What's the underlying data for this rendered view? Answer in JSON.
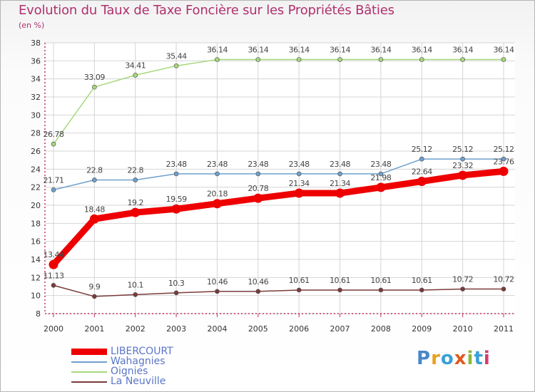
{
  "header": {
    "title": "Evolution du Taux de Taxe Foncière sur les Propriétés Bâties",
    "unit": "(en %)"
  },
  "logo": {
    "letters": [
      "P",
      "r",
      "o",
      "x",
      "i",
      "t",
      "i"
    ],
    "colors": [
      "#4a86c8",
      "#e8a020",
      "#3aa0d8",
      "#e05a20",
      "#8ab83a",
      "#3aa0d8",
      "#d83a70"
    ]
  },
  "chart_data": {
    "type": "line",
    "title": "Evolution du Taux de Taxe Foncière sur les Propriétés Bâties",
    "ylabel": "(en %)",
    "xlabel": "",
    "x": [
      "2000",
      "2001",
      "2002",
      "2003",
      "2004",
      "2005",
      "2006",
      "2007",
      "2008",
      "2009",
      "2010",
      "2011"
    ],
    "ylim": [
      8,
      38
    ],
    "yticks": [
      8,
      10,
      12,
      14,
      16,
      18,
      20,
      22,
      24,
      26,
      28,
      30,
      32,
      34,
      36,
      38
    ],
    "grid": true,
    "legend_position": "bottom-left",
    "series": [
      {
        "name": "LIBERCOURT",
        "color": "#ee0000",
        "emphasis": true,
        "values": [
          13.44,
          18.48,
          19.2,
          19.59,
          20.18,
          20.78,
          21.34,
          21.34,
          21.98,
          22.64,
          23.32,
          23.76
        ],
        "labels": [
          "13.44",
          "18.48",
          "19.2",
          "19.59",
          "20.18",
          "20.78",
          "21.34",
          "21.34",
          "21.98",
          "22.64",
          "23.32",
          "23.76"
        ]
      },
      {
        "name": "Wahagnies",
        "color": "#6fa0cc",
        "emphasis": false,
        "values": [
          21.71,
          22.8,
          22.8,
          23.48,
          23.48,
          23.48,
          23.48,
          23.48,
          23.48,
          25.12,
          25.12,
          25.12
        ],
        "labels": [
          "21.71",
          "22.8",
          "22.8",
          "23.48",
          "23.48",
          "23.48",
          "23.48",
          "23.48",
          "23.48",
          "25.12",
          "25.12",
          "25.12"
        ]
      },
      {
        "name": "Oignies",
        "color": "#a6d87a",
        "emphasis": false,
        "values": [
          26.78,
          33.09,
          34.41,
          35.44,
          36.14,
          36.14,
          36.14,
          36.14,
          36.14,
          36.14,
          36.14,
          36.14
        ],
        "labels": [
          "26.78",
          "33.09",
          "34.41",
          "35.44",
          "36.14",
          "36.14",
          "36.14",
          "36.14",
          "36.14",
          "36.14",
          "36.14",
          "36.14"
        ]
      },
      {
        "name": "La Neuville",
        "color": "#7a3a3a",
        "emphasis": false,
        "values": [
          11.13,
          9.9,
          10.1,
          10.3,
          10.46,
          10.46,
          10.61,
          10.61,
          10.61,
          10.61,
          10.72,
          10.72
        ],
        "labels": [
          "11.13",
          "9.9",
          "10.1",
          "10.3",
          "10.46",
          "10.46",
          "10.61",
          "10.61",
          "10.61",
          "10.61",
          "10.72",
          "10.72"
        ]
      }
    ]
  }
}
